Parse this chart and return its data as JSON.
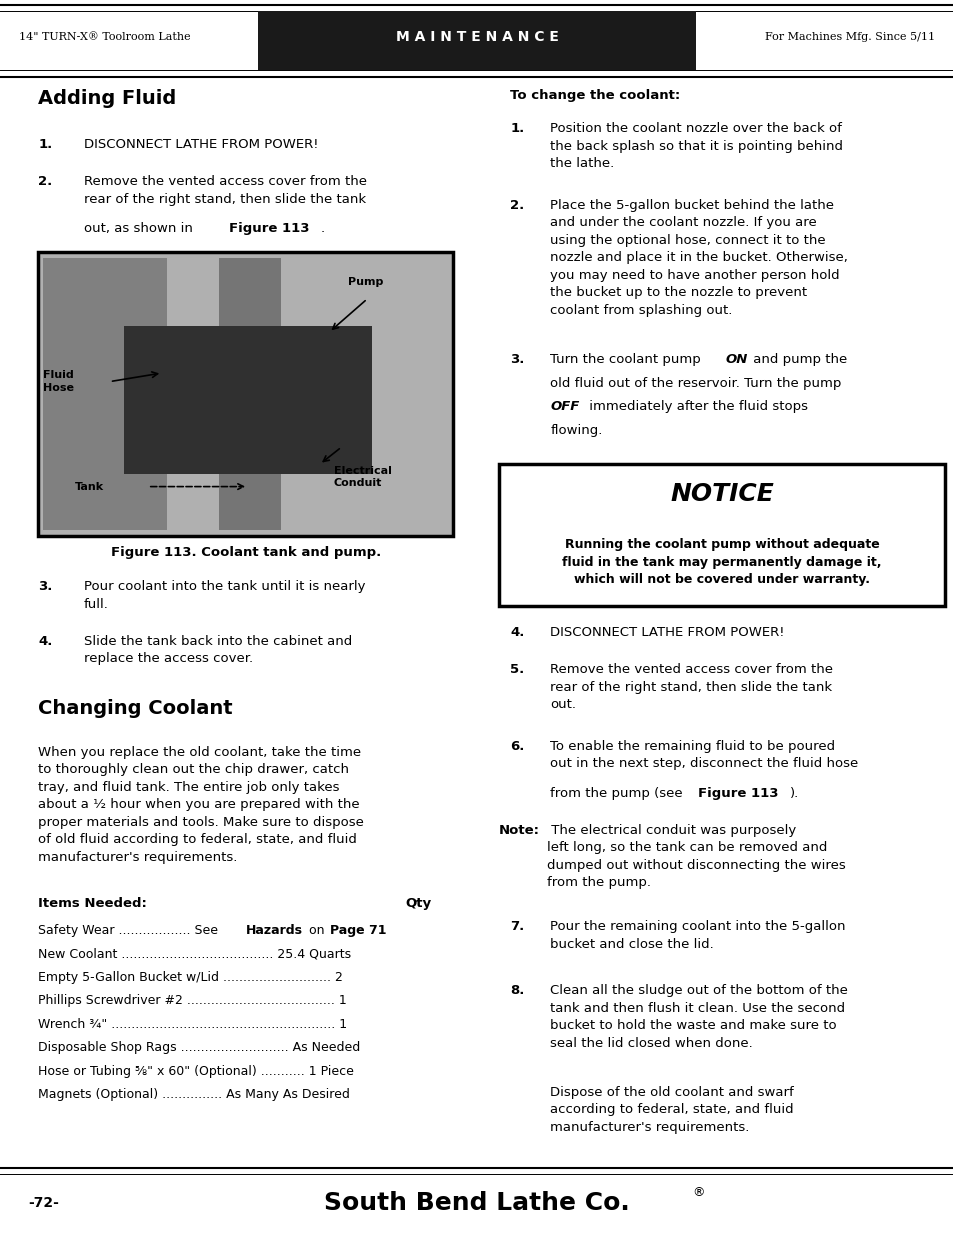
{
  "page_width": 9.54,
  "page_height": 12.35,
  "bg_color": "#ffffff",
  "header": {
    "left_text": "14\" TURN-X® Toolroom Lathe",
    "center_text": "M A I N T E N A N C E",
    "right_text": "For Machines Mfg. Since 5/11",
    "bg_color": "#1a1a1a",
    "text_color": "#ffffff",
    "side_text_color": "#000000"
  },
  "footer": {
    "page_num": "-72-",
    "brand": "South Bend Lathe Co.",
    "brand_sup": "®"
  }
}
